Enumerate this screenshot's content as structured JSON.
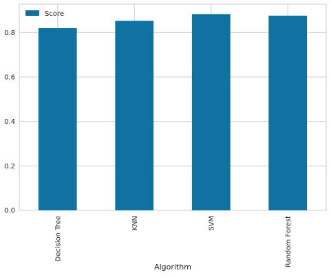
{
  "chart_data": {
    "type": "bar",
    "title": "",
    "xlabel": "Algorithm",
    "ylabel": "",
    "categories": [
      "Decision Tree",
      "KNN",
      "SVM",
      "Random Forest"
    ],
    "series": [
      {
        "name": "Score",
        "values": [
          0.82,
          0.853,
          0.883,
          0.876
        ]
      }
    ],
    "ylim": [
      0,
      0.928
    ],
    "yticks": [
      "0.0",
      "0.2",
      "0.4",
      "0.6",
      "0.8"
    ],
    "yticks_values": [
      0,
      0.2,
      0.4,
      0.6,
      0.8
    ],
    "grid": true,
    "legend_position": "upper-left",
    "bar_color": "#0f72a1",
    "grid_color": "#cccccc"
  }
}
